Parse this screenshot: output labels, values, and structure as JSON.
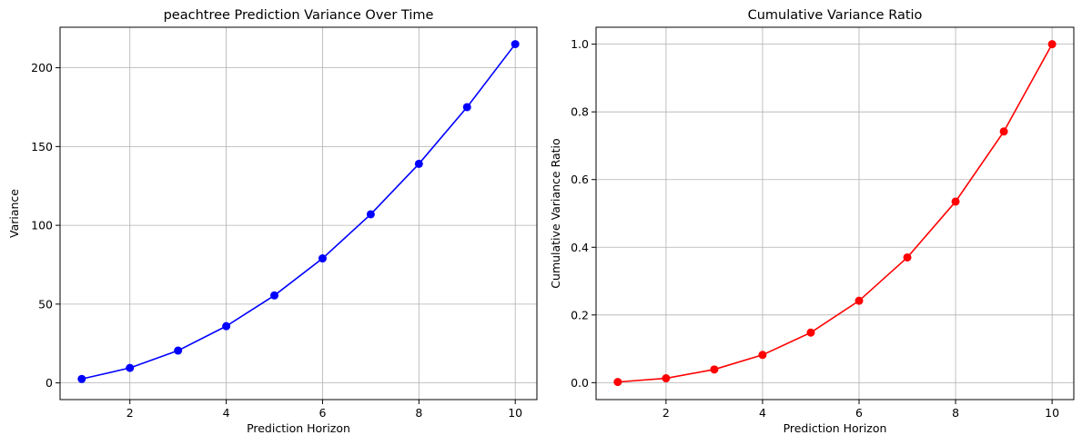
{
  "chart_data": [
    {
      "type": "line",
      "title": "peachtree Prediction Variance Over Time",
      "xlabel": "Prediction Horizon",
      "ylabel": "Variance",
      "x": [
        1,
        2,
        3,
        4,
        5,
        6,
        7,
        8,
        9,
        10
      ],
      "series": [
        {
          "values": [
            2.5,
            9.5,
            20.5,
            36,
            55.5,
            79,
            107,
            139,
            175,
            215
          ],
          "color": "#0000ff",
          "marker": "circle"
        }
      ],
      "xlim": [
        0.55,
        10.45
      ],
      "ylim": [
        -10.6,
        225.7
      ],
      "xticks": [
        2,
        4,
        6,
        8,
        10
      ],
      "yticks": [
        0,
        50,
        100,
        150,
        200
      ],
      "xtick_labels": [
        "2",
        "4",
        "6",
        "8",
        "10"
      ],
      "ytick_labels": [
        "0",
        "50",
        "100",
        "150",
        "200"
      ],
      "grid": true,
      "legend": null
    },
    {
      "type": "line",
      "title": "Cumulative Variance Ratio",
      "xlabel": "Prediction Horizon",
      "ylabel": "Cumulative Variance Ratio",
      "x": [
        1,
        2,
        3,
        4,
        5,
        6,
        7,
        8,
        9,
        10
      ],
      "series": [
        {
          "values": [
            0.002,
            0.013,
            0.039,
            0.082,
            0.148,
            0.242,
            0.37,
            0.535,
            0.742,
            1.0
          ],
          "color": "#ff0000",
          "marker": "circle"
        }
      ],
      "xlim": [
        0.55,
        10.45
      ],
      "ylim": [
        -0.05,
        1.05
      ],
      "xticks": [
        2,
        4,
        6,
        8,
        10
      ],
      "yticks": [
        0.0,
        0.2,
        0.4,
        0.6,
        0.8,
        1.0
      ],
      "xtick_labels": [
        "2",
        "4",
        "6",
        "8",
        "10"
      ],
      "ytick_labels": [
        "0.0",
        "0.2",
        "0.4",
        "0.6",
        "0.8",
        "1.0"
      ],
      "grid": true,
      "legend": null
    }
  ]
}
